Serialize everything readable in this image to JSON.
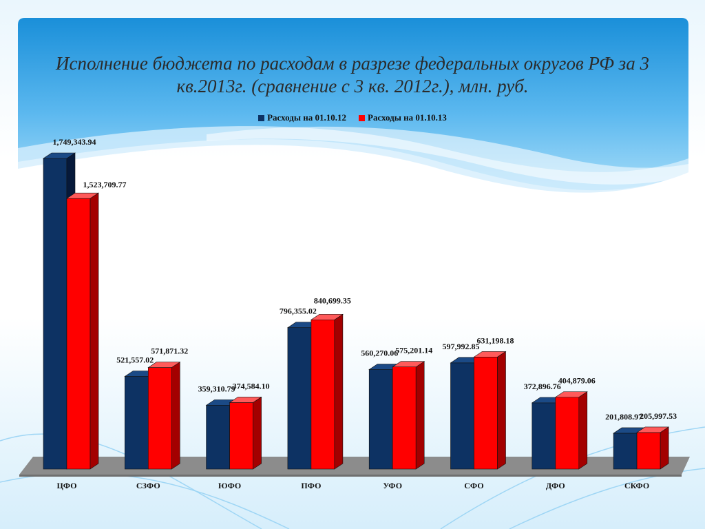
{
  "colors": {
    "series1": "#0d3263",
    "series2": "#ff0000",
    "floor": "#8c8c8c",
    "panel_top": "#1a8fd9",
    "panel_mid": "#7cc6f2"
  },
  "chart_data": {
    "type": "bar",
    "title": "Исполнение бюджета по расходам в разрезе федеральных округов РФ за 3 кв.2013г. (сравнение с 3 кв. 2012г.), млн. руб.",
    "categories": [
      "ЦФО",
      "СЗФО",
      "ЮФО",
      "ПФО",
      "УФО",
      "СФО",
      "ДФО",
      "СКФО"
    ],
    "series": [
      {
        "name": "Расходы на 01.10.12",
        "values": [
          1749343.94,
          521557.02,
          359310.79,
          796355.02,
          560270.06,
          597992.85,
          372896.76,
          201808.97
        ],
        "labels": [
          "1,749,343.94",
          "521,557.02",
          "359,310.79",
          "796,355.02",
          "560,270.06",
          "597,992.85",
          "372,896.76",
          "201,808.97"
        ]
      },
      {
        "name": "Расходы на 01.10.13",
        "values": [
          1523709.77,
          571871.32,
          374584.1,
          840699.35,
          575201.14,
          631198.18,
          404879.06,
          205997.53
        ],
        "labels": [
          "1,523,709.77",
          "571,871.32",
          "374,584.10",
          "840,699.35",
          "575,201.14",
          "631,198.18",
          "404,879.06",
          "205,997.53"
        ]
      }
    ],
    "ylim": [
      0,
      1900000
    ],
    "legend": "top",
    "grid": false
  }
}
